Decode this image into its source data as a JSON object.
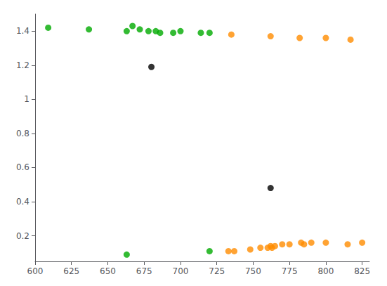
{
  "chart_data": {
    "type": "scatter",
    "series": [
      {
        "color": "#00aa00",
        "x": [
          609,
          637,
          663,
          667,
          672,
          678,
          683,
          686,
          695,
          700,
          714,
          720
        ],
        "values": [
          1.42,
          1.41,
          1.4,
          1.43,
          1.41,
          1.4,
          1.4,
          1.39,
          1.39,
          1.4,
          1.39,
          1.39
        ]
      },
      {
        "color": "#ff8c00",
        "x": [
          735,
          762,
          782,
          800,
          817
        ],
        "values": [
          1.38,
          1.37,
          1.36,
          1.36,
          1.35
        ]
      },
      {
        "color": "#00aa00",
        "x": [
          663,
          720
        ],
        "values": [
          0.09,
          0.11
        ]
      },
      {
        "color": "#ff8c00",
        "x": [
          733,
          737,
          748,
          755,
          760,
          762,
          763,
          765,
          770,
          775,
          783,
          785,
          790,
          800,
          815,
          825
        ],
        "values": [
          0.11,
          0.11,
          0.12,
          0.13,
          0.13,
          0.14,
          0.13,
          0.14,
          0.15,
          0.15,
          0.16,
          0.15,
          0.16,
          0.16,
          0.15,
          0.16
        ]
      },
      {
        "color": "#000000",
        "x": [
          680,
          762
        ],
        "values": [
          1.19,
          0.48
        ]
      }
    ],
    "xlim": [
      600,
      830
    ],
    "xticks": [
      600,
      625,
      650,
      675,
      700,
      725,
      750,
      775,
      800,
      825
    ],
    "ylim": [
      0.05,
      1.5
    ],
    "yticks": [
      0.2,
      0.4,
      0.6,
      0.8,
      1.0,
      1.2,
      1.4
    ],
    "grid": false,
    "marker": "circle"
  }
}
